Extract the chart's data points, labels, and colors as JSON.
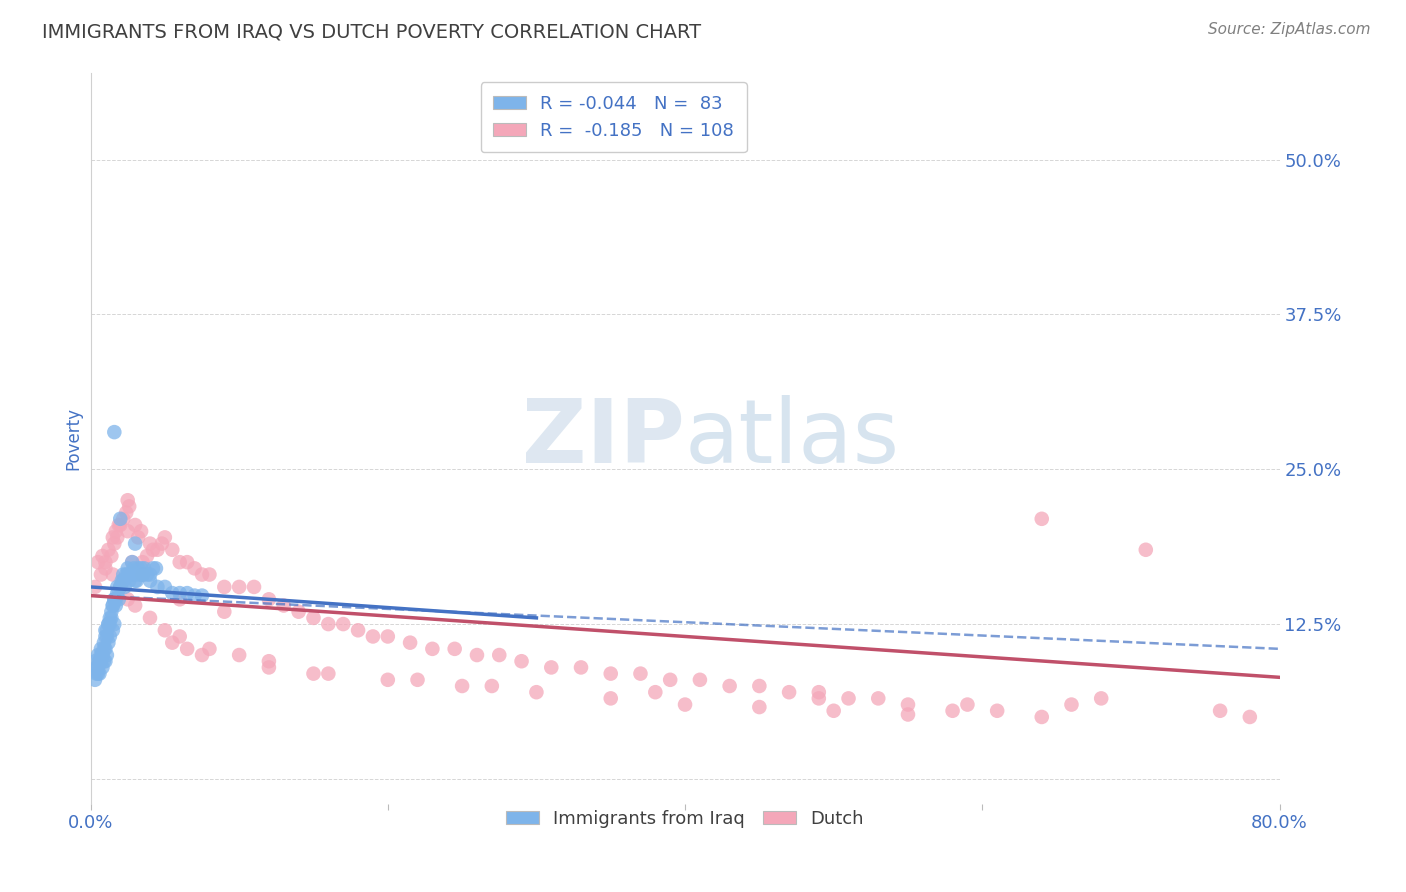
{
  "title": "IMMIGRANTS FROM IRAQ VS DUTCH POVERTY CORRELATION CHART",
  "source": "Source: ZipAtlas.com",
  "ylabel": "Poverty",
  "xlim": [
    0.0,
    0.8
  ],
  "ylim": [
    -0.02,
    0.57
  ],
  "yticks": [
    0.0,
    0.125,
    0.25,
    0.375,
    0.5
  ],
  "ytick_labels": [
    "",
    "12.5%",
    "25.0%",
    "37.5%",
    "50.0%"
  ],
  "xticks": [
    0.0,
    0.2,
    0.4,
    0.6,
    0.8
  ],
  "xtick_labels": [
    "0.0%",
    "",
    "",
    "",
    "80.0%"
  ],
  "r_iraq": -0.044,
  "n_iraq": 83,
  "r_dutch": -0.185,
  "n_dutch": 108,
  "color_iraq": "#7EB4EA",
  "color_dutch": "#F4A7B9",
  "color_iraq_line": "#4472C4",
  "color_dutch_line": "#C0506A",
  "title_color": "#404040",
  "source_color": "#808080",
  "axis_label_color": "#4472C4",
  "legend_text_color": "#4472C4",
  "watermark_zip": "ZIP",
  "watermark_atlas": "atlas",
  "background_color": "#FFFFFF",
  "grid_color": "#CCCCCC",
  "iraq_x": [
    0.003,
    0.004,
    0.005,
    0.005,
    0.006,
    0.006,
    0.007,
    0.007,
    0.008,
    0.008,
    0.009,
    0.009,
    0.01,
    0.01,
    0.01,
    0.011,
    0.011,
    0.012,
    0.012,
    0.013,
    0.013,
    0.014,
    0.015,
    0.015,
    0.016,
    0.016,
    0.017,
    0.018,
    0.019,
    0.02,
    0.021,
    0.022,
    0.023,
    0.024,
    0.025,
    0.026,
    0.027,
    0.028,
    0.029,
    0.03,
    0.031,
    0.032,
    0.033,
    0.034,
    0.035,
    0.036,
    0.038,
    0.04,
    0.042,
    0.044,
    0.003,
    0.004,
    0.005,
    0.006,
    0.007,
    0.008,
    0.009,
    0.01,
    0.011,
    0.012,
    0.013,
    0.014,
    0.015,
    0.016,
    0.017,
    0.018,
    0.02,
    0.022,
    0.025,
    0.028,
    0.03,
    0.035,
    0.04,
    0.045,
    0.05,
    0.055,
    0.06,
    0.065,
    0.07,
    0.075,
    0.016,
    0.02,
    0.03
  ],
  "iraq_y": [
    0.095,
    0.09,
    0.1,
    0.085,
    0.095,
    0.085,
    0.095,
    0.105,
    0.1,
    0.09,
    0.11,
    0.095,
    0.12,
    0.105,
    0.095,
    0.115,
    0.1,
    0.125,
    0.11,
    0.13,
    0.115,
    0.13,
    0.14,
    0.12,
    0.145,
    0.125,
    0.14,
    0.155,
    0.145,
    0.155,
    0.16,
    0.165,
    0.155,
    0.165,
    0.17,
    0.16,
    0.165,
    0.175,
    0.17,
    0.165,
    0.16,
    0.17,
    0.165,
    0.17,
    0.165,
    0.17,
    0.165,
    0.165,
    0.17,
    0.17,
    0.08,
    0.085,
    0.09,
    0.095,
    0.1,
    0.1,
    0.105,
    0.115,
    0.12,
    0.125,
    0.125,
    0.135,
    0.14,
    0.145,
    0.145,
    0.15,
    0.155,
    0.16,
    0.165,
    0.165,
    0.16,
    0.165,
    0.16,
    0.155,
    0.155,
    0.15,
    0.15,
    0.15,
    0.148,
    0.148,
    0.28,
    0.21,
    0.19
  ],
  "dutch_x": [
    0.003,
    0.005,
    0.007,
    0.008,
    0.01,
    0.012,
    0.014,
    0.015,
    0.016,
    0.017,
    0.018,
    0.019,
    0.02,
    0.022,
    0.024,
    0.025,
    0.026,
    0.028,
    0.03,
    0.032,
    0.034,
    0.035,
    0.038,
    0.04,
    0.042,
    0.045,
    0.048,
    0.05,
    0.055,
    0.06,
    0.065,
    0.07,
    0.075,
    0.08,
    0.09,
    0.1,
    0.11,
    0.12,
    0.13,
    0.14,
    0.15,
    0.16,
    0.17,
    0.18,
    0.19,
    0.2,
    0.215,
    0.23,
    0.245,
    0.26,
    0.275,
    0.29,
    0.31,
    0.33,
    0.35,
    0.37,
    0.39,
    0.41,
    0.43,
    0.45,
    0.47,
    0.49,
    0.51,
    0.53,
    0.55,
    0.58,
    0.61,
    0.64,
    0.66,
    0.68,
    0.01,
    0.015,
    0.02,
    0.025,
    0.03,
    0.04,
    0.05,
    0.06,
    0.08,
    0.1,
    0.12,
    0.15,
    0.2,
    0.25,
    0.3,
    0.35,
    0.4,
    0.45,
    0.5,
    0.55,
    0.055,
    0.065,
    0.075,
    0.12,
    0.16,
    0.22,
    0.27,
    0.38,
    0.49,
    0.59,
    0.64,
    0.71,
    0.76,
    0.78,
    0.025,
    0.035,
    0.06,
    0.09
  ],
  "dutch_y": [
    0.155,
    0.175,
    0.165,
    0.18,
    0.175,
    0.185,
    0.18,
    0.195,
    0.19,
    0.2,
    0.195,
    0.205,
    0.205,
    0.21,
    0.215,
    0.225,
    0.22,
    0.175,
    0.205,
    0.195,
    0.2,
    0.175,
    0.18,
    0.19,
    0.185,
    0.185,
    0.19,
    0.195,
    0.185,
    0.175,
    0.175,
    0.17,
    0.165,
    0.165,
    0.155,
    0.155,
    0.155,
    0.145,
    0.14,
    0.135,
    0.13,
    0.125,
    0.125,
    0.12,
    0.115,
    0.115,
    0.11,
    0.105,
    0.105,
    0.1,
    0.1,
    0.095,
    0.09,
    0.09,
    0.085,
    0.085,
    0.08,
    0.08,
    0.075,
    0.075,
    0.07,
    0.07,
    0.065,
    0.065,
    0.06,
    0.055,
    0.055,
    0.05,
    0.06,
    0.065,
    0.17,
    0.165,
    0.155,
    0.145,
    0.14,
    0.13,
    0.12,
    0.115,
    0.105,
    0.1,
    0.095,
    0.085,
    0.08,
    0.075,
    0.07,
    0.065,
    0.06,
    0.058,
    0.055,
    0.052,
    0.11,
    0.105,
    0.1,
    0.09,
    0.085,
    0.08,
    0.075,
    0.07,
    0.065,
    0.06,
    0.21,
    0.185,
    0.055,
    0.05,
    0.2,
    0.165,
    0.145,
    0.135
  ],
  "iraq_line_x": [
    0.0,
    0.3
  ],
  "iraq_line_y": [
    0.155,
    0.13
  ],
  "dutch_line_x": [
    0.0,
    0.8
  ],
  "dutch_line_y": [
    0.148,
    0.082
  ],
  "dash_line_x": [
    0.0,
    0.8
  ],
  "dash_line_y": [
    0.148,
    0.105
  ]
}
